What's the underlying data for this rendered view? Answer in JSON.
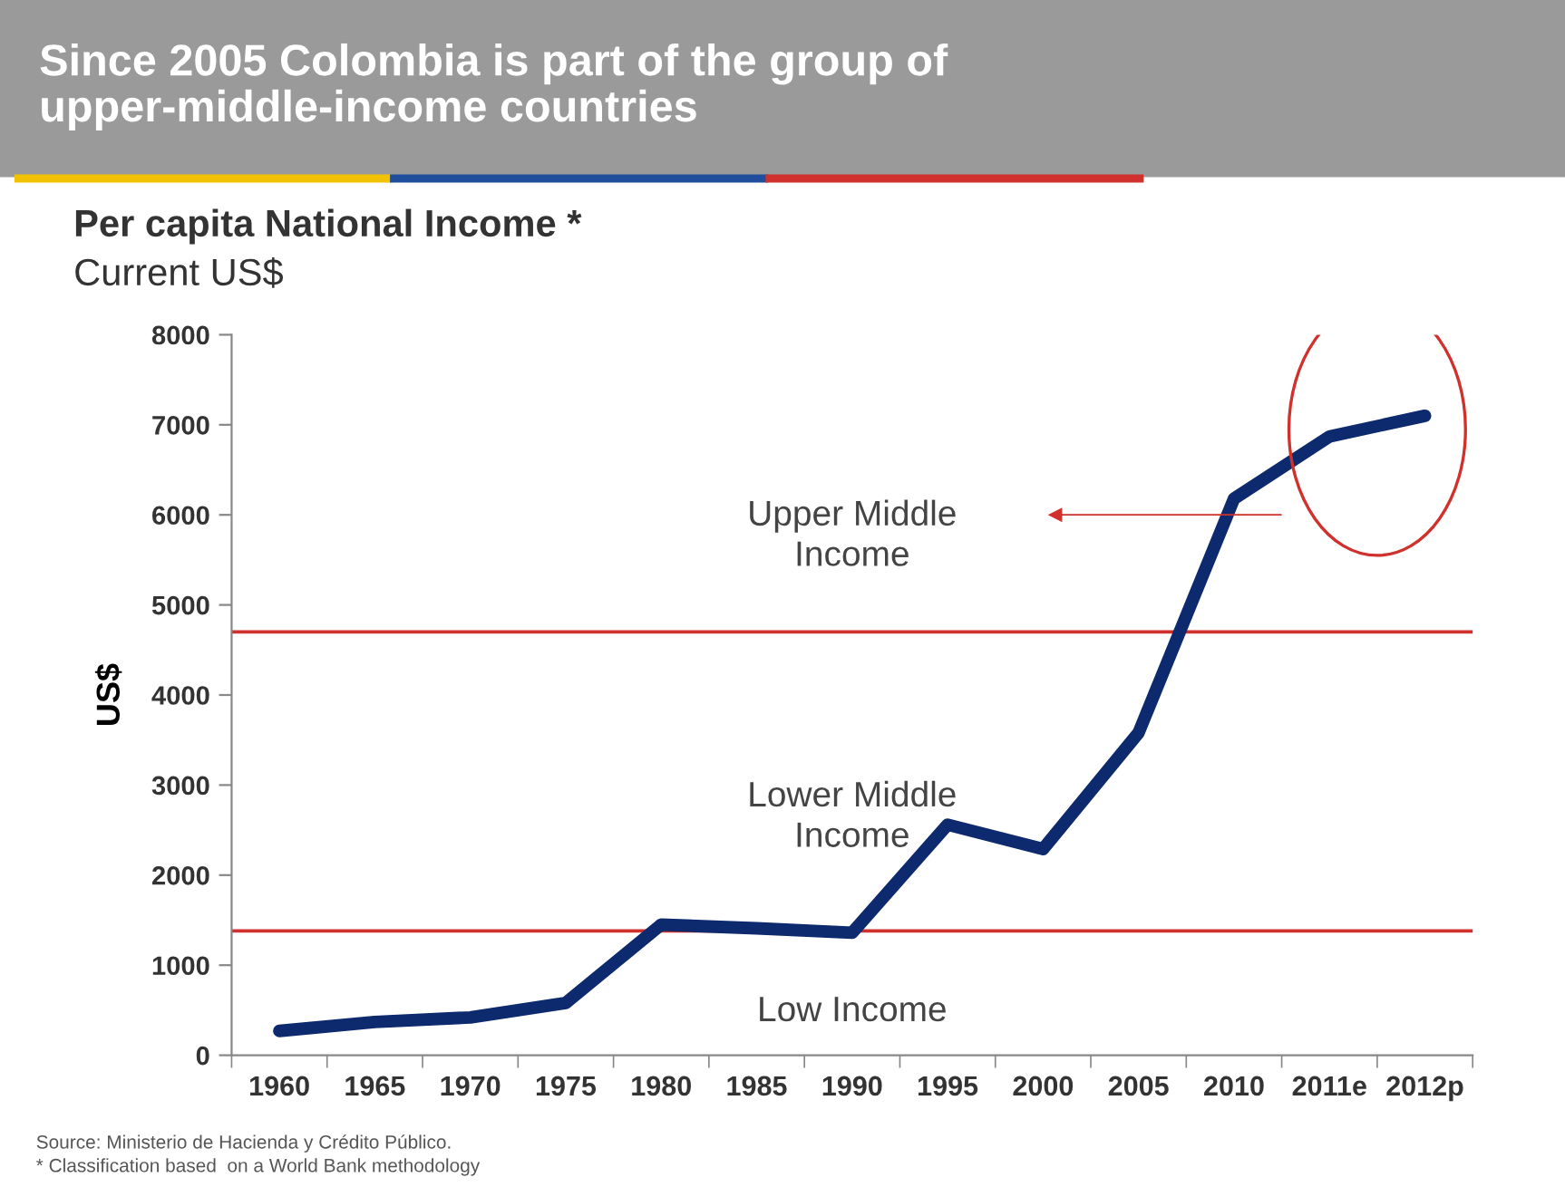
{
  "chart_data": {
    "type": "line",
    "title": "Since 2005 Colombia is part of the group of\nupper-middle-income countries",
    "subtitle": "Per capita National Income *",
    "ylabel": "US$",
    "categories": [
      "1960",
      "1965",
      "1970",
      "1975",
      "1980",
      "1985",
      "1990",
      "1995",
      "2000",
      "2005",
      "2010",
      "2011e",
      "2012p"
    ],
    "series": [
      {
        "color": "#0d2a6e",
        "values": [
          270,
          370,
          420,
          580,
          1450,
          1410,
          1360,
          2560,
          2290,
          3580,
          6180,
          6870,
          7100
        ]
      }
    ],
    "ylim": [
      0,
      8000
    ],
    "yticks": [
      0,
      1000,
      2000,
      3000,
      4000,
      5000,
      6000,
      7000,
      8000
    ],
    "grid": false,
    "marker": "none",
    "line_style": "solid",
    "ref_lines": [
      {
        "axis": "y",
        "value": 4700,
        "color": "#d0312d"
      },
      {
        "axis": "y",
        "value": 1380,
        "color": "#d0312d"
      }
    ],
    "annotations": [
      "Current US$",
      "Upper Middle\nIncome",
      "Lower Middle\nIncome",
      "Low Income",
      "Source: Ministerio de Hacienda y Crédito Público.",
      "* Classification based  on a World Bank methodology"
    ]
  }
}
